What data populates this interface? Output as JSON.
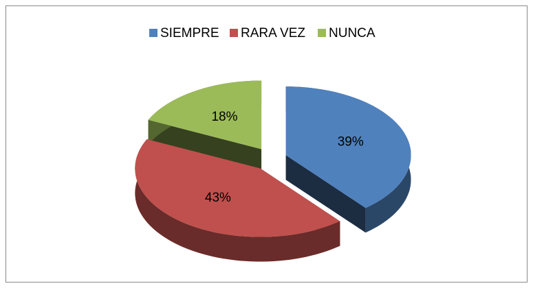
{
  "chart_data": {
    "type": "pie",
    "categories": [
      "SIEMPRE",
      "RARA VEZ",
      "NUNCA"
    ],
    "values": [
      39,
      43,
      18
    ],
    "value_labels": [
      "39%",
      "43%",
      "18%"
    ],
    "colors": [
      "#4f81bd",
      "#c0504d",
      "#9bbb59"
    ],
    "legend": "top"
  }
}
